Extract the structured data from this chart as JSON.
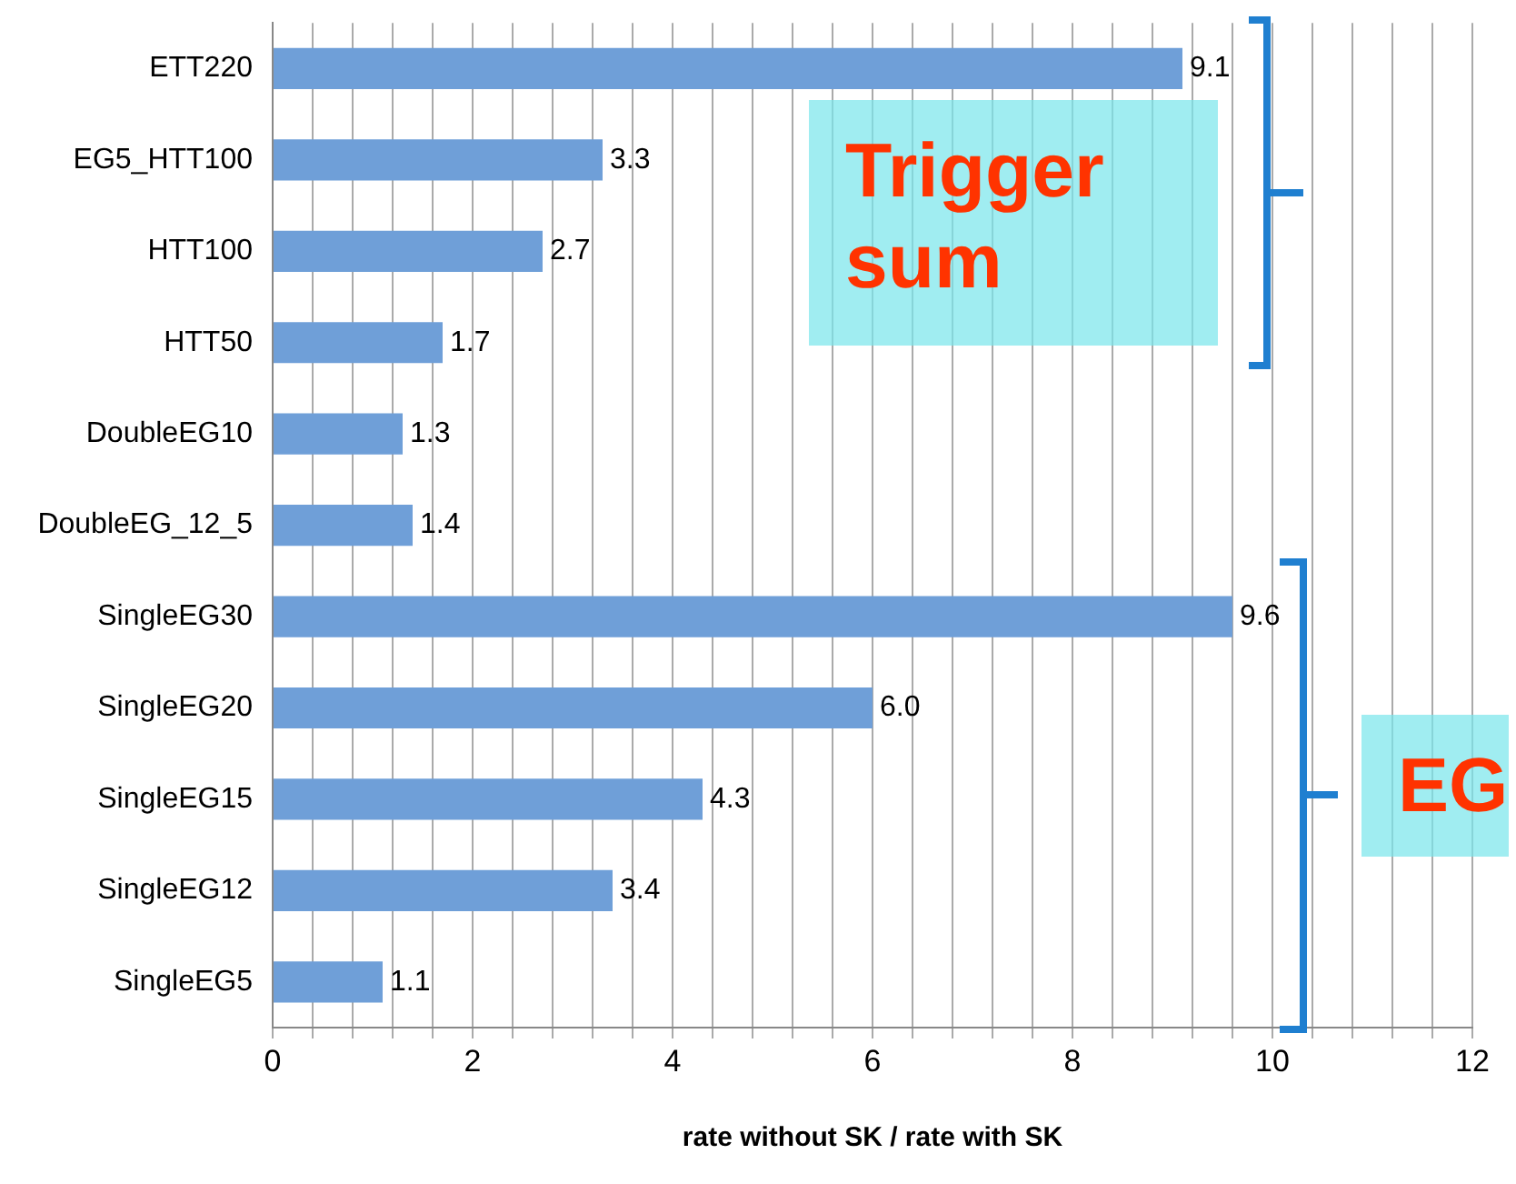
{
  "chart_data": {
    "type": "bar",
    "orientation": "horizontal",
    "categories": [
      "ETT220",
      "EG5_HTT100",
      "HTT100",
      "HTT50",
      "DoubleEG10",
      "DoubleEG_12_5",
      "SingleEG30",
      "SingleEG20",
      "SingleEG15",
      "SingleEG12",
      "SingleEG5"
    ],
    "values": [
      9.1,
      3.3,
      2.7,
      1.7,
      1.3,
      1.4,
      9.6,
      6.0,
      4.3,
      3.4,
      1.1
    ],
    "value_labels": [
      "9.1",
      "3.3",
      "2.7",
      "1.7",
      "1.3",
      "1.4",
      "9.6",
      "6.0",
      "4.3",
      "3.4",
      "1.1"
    ],
    "color": "#6f9fd8",
    "xlabel": "rate without SK / rate with SK",
    "xlim": [
      0,
      12
    ],
    "xticks": [
      0,
      {
        "value": 0.4,
        "label": null
      },
      {
        "value": 0.8,
        "label": null
      },
      {
        "value": 1.2,
        "label": null
      },
      {
        "value": 1.6,
        "label": null
      },
      2,
      {
        "value": 2.4,
        "label": null
      },
      {
        "value": 2.8,
        "label": null
      },
      {
        "value": 3.2,
        "label": null
      },
      {
        "value": 3.6,
        "label": null
      },
      4,
      {
        "value": 4.4,
        "label": null
      },
      {
        "value": 4.8,
        "label": null
      },
      {
        "value": 5.2,
        "label": null
      },
      {
        "value": 5.6,
        "label": null
      },
      6,
      {
        "value": 6.4,
        "label": null
      },
      {
        "value": 6.8,
        "label": null
      },
      {
        "value": 7.2,
        "label": null
      },
      {
        "value": 7.6,
        "label": null
      },
      8,
      {
        "value": 8.4,
        "label": null
      },
      {
        "value": 8.8,
        "label": null
      },
      {
        "value": 9.2,
        "label": null
      },
      {
        "value": 9.6,
        "label": null
      },
      10,
      {
        "value": 10.4,
        "label": null
      },
      {
        "value": 10.8,
        "label": null
      },
      {
        "value": 11.2,
        "label": null
      },
      {
        "value": 11.6,
        "label": null
      },
      12
    ],
    "grid": "x",
    "annotations": [
      "Trigger sum",
      "EG"
    ]
  }
}
